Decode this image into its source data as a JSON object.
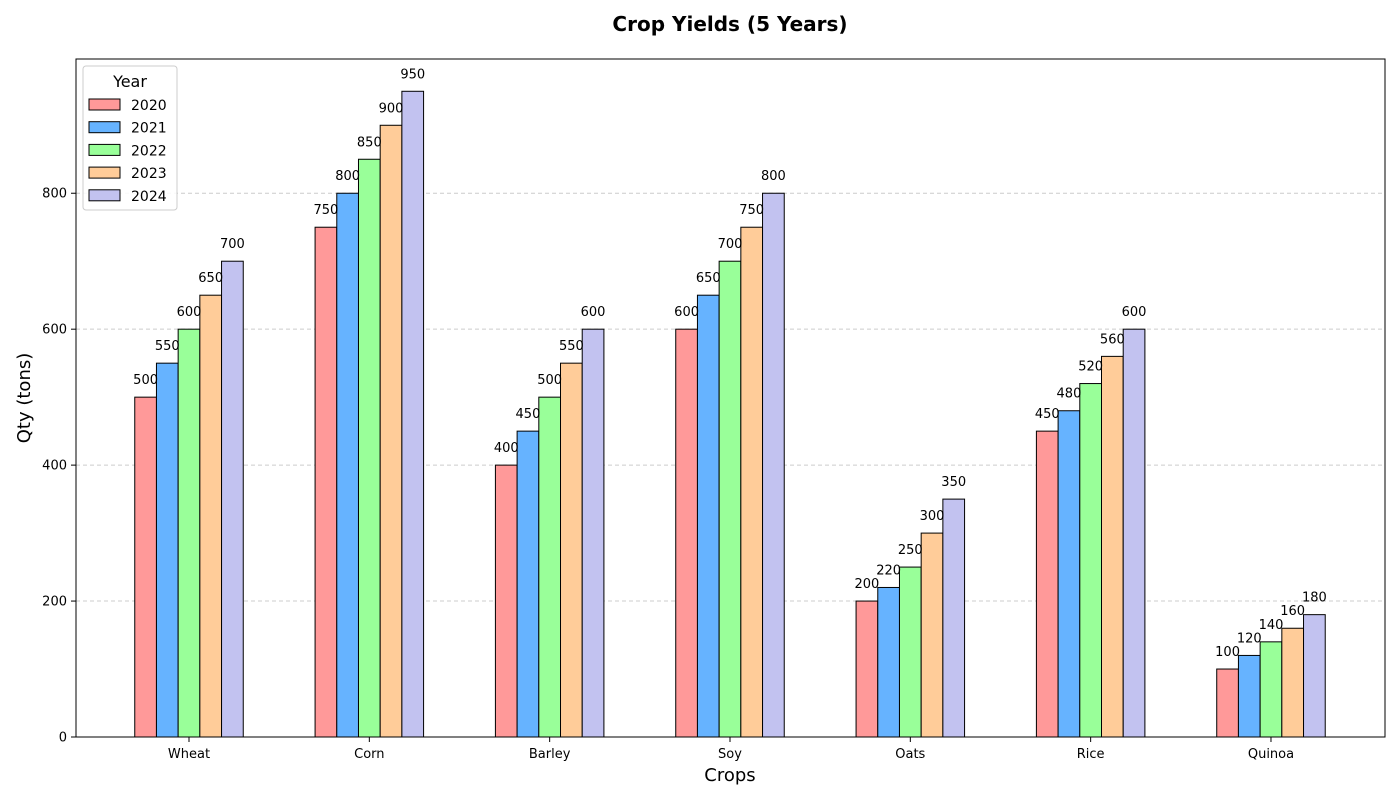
{
  "chart_data": {
    "type": "bar",
    "title": "Crop Yields (5 Years)",
    "xlabel": "Crops",
    "ylabel": "Qty (tons)",
    "categories": [
      "Wheat",
      "Corn",
      "Barley",
      "Soy",
      "Oats",
      "Rice",
      "Quinoa"
    ],
    "series": [
      {
        "name": "2020",
        "color": "#ff9999",
        "values": [
          500,
          750,
          400,
          600,
          200,
          450,
          100
        ]
      },
      {
        "name": "2021",
        "color": "#66b3ff",
        "values": [
          550,
          800,
          450,
          650,
          220,
          480,
          120
        ]
      },
      {
        "name": "2022",
        "color": "#99ff99",
        "values": [
          600,
          850,
          500,
          700,
          250,
          520,
          140
        ]
      },
      {
        "name": "2023",
        "color": "#ffcc99",
        "values": [
          650,
          900,
          550,
          750,
          300,
          560,
          160
        ]
      },
      {
        "name": "2024",
        "color": "#c2c2f0",
        "values": [
          700,
          950,
          600,
          800,
          350,
          600,
          180
        ]
      }
    ],
    "ylim": [
      0,
      997.5
    ],
    "yticks": [
      0,
      200,
      400,
      600,
      800
    ],
    "grid": "y-dashed",
    "legend": {
      "title": "Year",
      "placement": "top-left"
    }
  }
}
